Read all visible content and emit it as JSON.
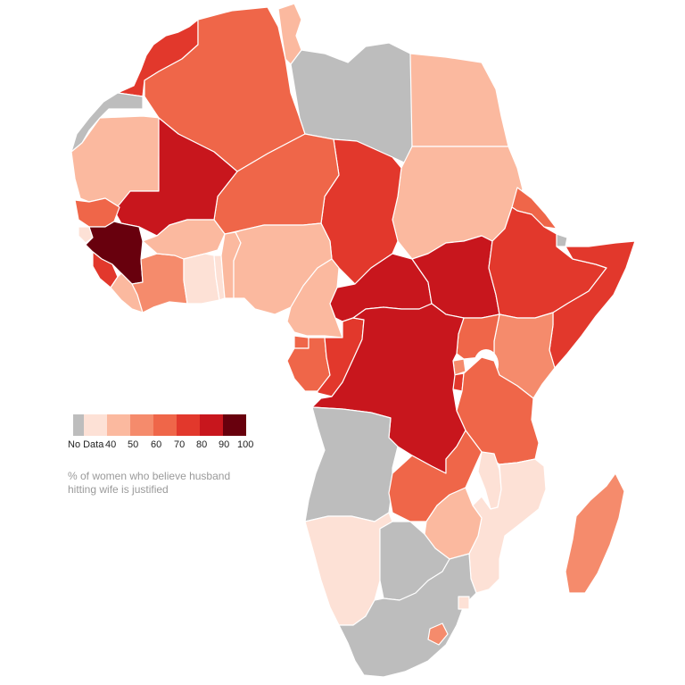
{
  "legend": {
    "no_data_label": "No Data",
    "ticks": [
      "40",
      "50",
      "60",
      "70",
      "80",
      "90",
      "100"
    ]
  },
  "caption": {
    "line1": "% of women who believe husband",
    "line2": "hitting wife is justified"
  },
  "colors": {
    "no_data": "#bdbdbd",
    "b30_40": "#fde1d6",
    "b40_50": "#fbb99f",
    "b50_60": "#f58b6c",
    "b60_70": "#ef6649",
    "b70_80": "#e2382c",
    "b80_90": "#c8161d",
    "b90_100": "#68000d"
  }
}
